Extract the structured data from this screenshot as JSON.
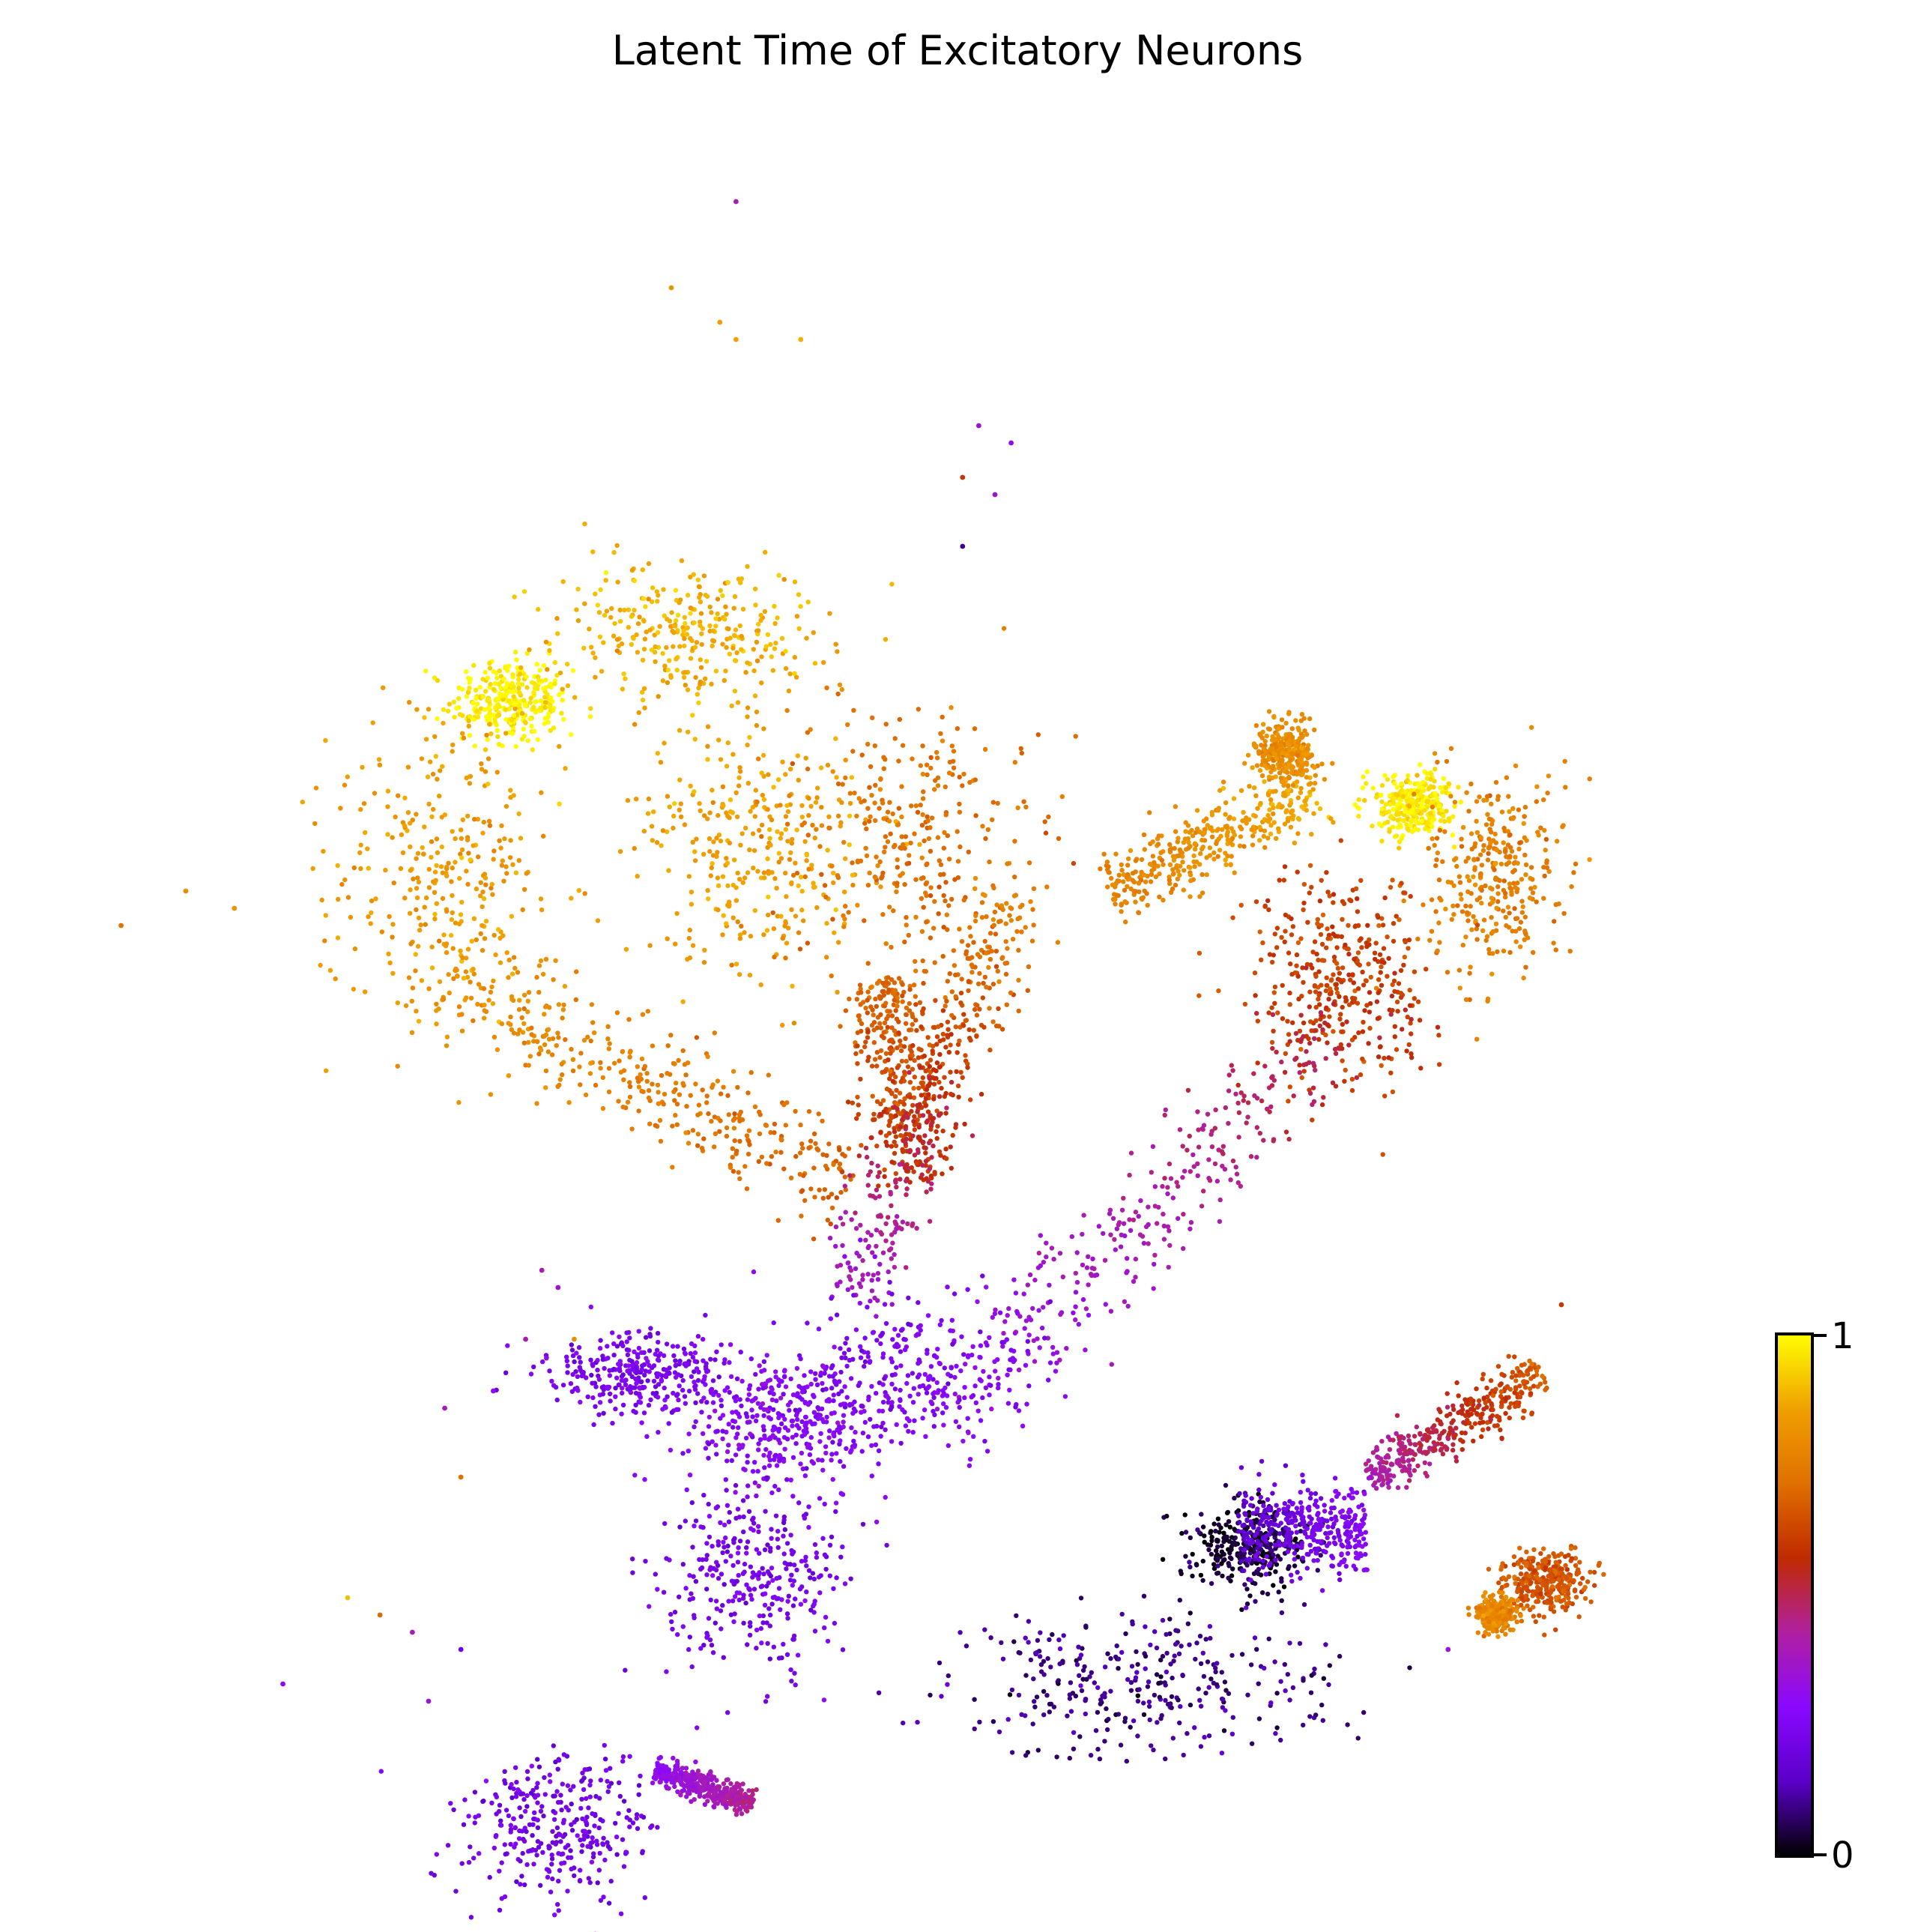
{
  "chart_data": {
    "type": "scatter",
    "title": "Latent Time of Excitatory Neurons",
    "xlabel": "",
    "ylabel": "",
    "axes_visible": false,
    "grid": false,
    "colormap": "gnuplot",
    "colorbar": {
      "position": "right-bottom",
      "vmin": 0,
      "vmax": 1,
      "tick_labels": [
        "0",
        "1"
      ],
      "stops": [
        "#000000",
        "#5a00c8",
        "#8a08ff",
        "#b020a0",
        "#c02a00",
        "#e07000",
        "#f0a000",
        "#ffff00"
      ]
    },
    "clusters": [
      {
        "shape": "blob",
        "center": [
          0.25,
          0.68
        ],
        "spread": [
          0.03,
          0.02
        ],
        "latent_time": 0.98
      },
      {
        "shape": "blob",
        "center": [
          0.36,
          0.72
        ],
        "spread": [
          0.07,
          0.035
        ],
        "latent_time": 0.88
      },
      {
        "shape": "blob",
        "center": [
          0.21,
          0.58
        ],
        "spread": [
          0.06,
          0.08
        ],
        "latent_time": 0.84
      },
      {
        "shape": "blob",
        "center": [
          0.4,
          0.6
        ],
        "spread": [
          0.06,
          0.06
        ],
        "latent_time": 0.85
      },
      {
        "shape": "blob",
        "center": [
          0.5,
          0.6
        ],
        "spread": [
          0.07,
          0.07
        ],
        "latent_time": 0.72
      },
      {
        "shape": "band",
        "from": [
          0.21,
          0.52
        ],
        "to": [
          0.46,
          0.4
        ],
        "width": 0.03,
        "latent_time": [
          0.82,
          0.68
        ]
      },
      {
        "shape": "band",
        "from": [
          0.48,
          0.52
        ],
        "to": [
          0.5,
          0.4
        ],
        "width": 0.025,
        "latent_time": [
          0.7,
          0.58
        ]
      },
      {
        "shape": "band",
        "from": [
          0.56,
          0.57
        ],
        "to": [
          0.46,
          0.33
        ],
        "width": 0.025,
        "latent_time": [
          0.78,
          0.35
        ]
      },
      {
        "shape": "band",
        "from": [
          0.62,
          0.57
        ],
        "to": [
          0.75,
          0.63
        ],
        "width": 0.02,
        "latent_time": [
          0.76,
          0.88
        ]
      },
      {
        "shape": "blob",
        "center": [
          0.81,
          0.62
        ],
        "spread": [
          0.02,
          0.015
        ],
        "latent_time": 0.97
      },
      {
        "shape": "blob",
        "center": [
          0.86,
          0.58
        ],
        "spread": [
          0.035,
          0.05
        ],
        "latent_time": 0.76
      },
      {
        "shape": "blob",
        "center": [
          0.76,
          0.52
        ],
        "spread": [
          0.05,
          0.05
        ],
        "latent_time": 0.62
      },
      {
        "shape": "band",
        "from": [
          0.8,
          0.52
        ],
        "to": [
          0.52,
          0.27
        ],
        "width": 0.035,
        "latent_time": [
          0.58,
          0.28
        ]
      },
      {
        "shape": "blob",
        "center": [
          0.73,
          0.65
        ],
        "spread": [
          0.015,
          0.012
        ],
        "latent_time": 0.8
      },
      {
        "shape": "blob",
        "center": [
          0.49,
          0.29
        ],
        "spread": [
          0.06,
          0.04
        ],
        "latent_time": 0.26
      },
      {
        "shape": "blob",
        "center": [
          0.42,
          0.26
        ],
        "spread": [
          0.05,
          0.03
        ],
        "latent_time": 0.28
      },
      {
        "shape": "blob",
        "center": [
          0.33,
          0.29
        ],
        "spread": [
          0.05,
          0.02
        ],
        "latent_time": 0.24
      },
      {
        "shape": "blob",
        "center": [
          0.4,
          0.17
        ],
        "spread": [
          0.045,
          0.045
        ],
        "latent_time": 0.23
      },
      {
        "shape": "blob",
        "center": [
          0.64,
          0.11
        ],
        "spread": [
          0.1,
          0.035
        ],
        "latent_time": 0.1
      },
      {
        "shape": "blob",
        "center": [
          0.71,
          0.19
        ],
        "spread": [
          0.03,
          0.02
        ],
        "latent_time": 0.04
      },
      {
        "shape": "band",
        "from": [
          0.7,
          0.2
        ],
        "to": [
          0.78,
          0.2
        ],
        "width": 0.025,
        "latent_time": [
          0.16,
          0.28
        ]
      },
      {
        "shape": "band",
        "from": [
          0.78,
          0.23
        ],
        "to": [
          0.89,
          0.29
        ],
        "width": 0.015,
        "latent_time": [
          0.4,
          0.68
        ]
      },
      {
        "shape": "blob",
        "center": [
          0.89,
          0.17
        ],
        "spread": [
          0.02,
          0.015
        ],
        "latent_time": 0.66
      },
      {
        "shape": "blob",
        "center": [
          0.86,
          0.15
        ],
        "spread": [
          0.01,
          0.008
        ],
        "latent_time": 0.78
      },
      {
        "shape": "blob",
        "center": [
          0.28,
          0.03
        ],
        "spread": [
          0.05,
          0.035
        ],
        "latent_time": 0.22
      },
      {
        "shape": "band",
        "from": [
          0.34,
          0.06
        ],
        "to": [
          0.4,
          0.04
        ],
        "width": 0.008,
        "latent_time": [
          0.3,
          0.45
        ]
      }
    ],
    "outliers": [
      {
        "x": 0.39,
        "y": 0.97,
        "latent_time": 0.4
      },
      {
        "x": 0.35,
        "y": 0.92,
        "latent_time": 0.82
      },
      {
        "x": 0.38,
        "y": 0.9,
        "latent_time": 0.85
      },
      {
        "x": 0.43,
        "y": 0.89,
        "latent_time": 0.88
      },
      {
        "x": 0.39,
        "y": 0.89,
        "latent_time": 0.86
      },
      {
        "x": 0.54,
        "y": 0.84,
        "latent_time": 0.35
      },
      {
        "x": 0.56,
        "y": 0.83,
        "latent_time": 0.3
      },
      {
        "x": 0.53,
        "y": 0.81,
        "latent_time": 0.6
      },
      {
        "x": 0.55,
        "y": 0.8,
        "latent_time": 0.35
      },
      {
        "x": 0.53,
        "y": 0.77,
        "latent_time": 0.1
      },
      {
        "x": 0.01,
        "y": 0.55,
        "latent_time": 0.72
      },
      {
        "x": 0.05,
        "y": 0.57,
        "latent_time": 0.8
      },
      {
        "x": 0.08,
        "y": 0.56,
        "latent_time": 0.82
      },
      {
        "x": 0.15,
        "y": 0.16,
        "latent_time": 0.9
      },
      {
        "x": 0.17,
        "y": 0.15,
        "latent_time": 0.7
      },
      {
        "x": 0.19,
        "y": 0.14,
        "latent_time": 0.4
      },
      {
        "x": 0.22,
        "y": 0.13,
        "latent_time": 0.2
      },
      {
        "x": 0.11,
        "y": 0.11,
        "latent_time": 0.3
      },
      {
        "x": 0.2,
        "y": 0.1,
        "latent_time": 0.35
      },
      {
        "x": 0.21,
        "y": 0.27,
        "latent_time": 0.4
      },
      {
        "x": 0.24,
        "y": 0.28,
        "latent_time": 0.3
      },
      {
        "x": 0.22,
        "y": 0.23,
        "latent_time": 0.72
      },
      {
        "x": 0.27,
        "y": 0.35,
        "latent_time": 0.4
      },
      {
        "x": 0.28,
        "y": 0.34,
        "latent_time": 0.35
      },
      {
        "x": 0.29,
        "y": 0.31,
        "latent_time": 0.8
      },
      {
        "x": 0.26,
        "y": 0.31,
        "latent_time": 0.4
      },
      {
        "x": 0.83,
        "y": 0.13,
        "latent_time": 0.35
      },
      {
        "x": 0.9,
        "y": 0.33,
        "latent_time": 0.6
      }
    ]
  }
}
